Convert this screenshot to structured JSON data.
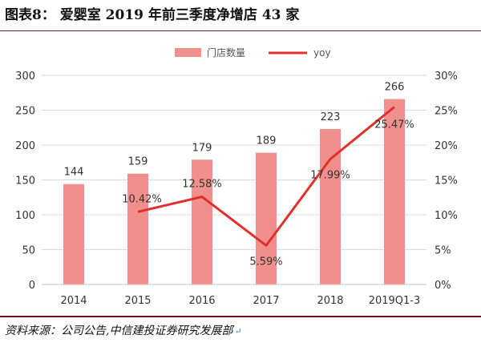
{
  "header": {
    "title": "图表8：  爱婴室 2019 年前三季度净增店 43 家"
  },
  "footer": {
    "source": "资料来源：公司公告,中信建投证券研究发展部"
  },
  "colors": {
    "bar": "#F08F8C",
    "line": "#E0302B",
    "axis": "#d9d9d9",
    "rule": "#7a0f12"
  },
  "chart_data": {
    "type": "bar",
    "categories": [
      "2014",
      "2015",
      "2016",
      "2017",
      "2018",
      "2019Q1-3"
    ],
    "series": [
      {
        "name": "门店数量",
        "type": "bar",
        "axis": "left",
        "values": [
          144,
          159,
          179,
          189,
          223,
          266
        ],
        "labels": [
          "144",
          "159",
          "179",
          "189",
          "223",
          "266"
        ]
      },
      {
        "name": "yoy",
        "type": "line",
        "axis": "right",
        "values": [
          null,
          10.42,
          12.58,
          5.59,
          17.99,
          25.47
        ],
        "labels": [
          "",
          "10.42%",
          "12.58%",
          "5.59%",
          "17.99%",
          "25.47%"
        ]
      }
    ],
    "y_left": {
      "min": 0,
      "max": 300,
      "ticks": [
        "0",
        "50",
        "100",
        "150",
        "200",
        "250",
        "300"
      ]
    },
    "y_right": {
      "min": 0,
      "max": 30,
      "ticks": [
        "0%",
        "5%",
        "10%",
        "15%",
        "20%",
        "25%",
        "30%"
      ]
    },
    "legend": [
      "门店数量",
      "yoy"
    ],
    "legend_position": "top-center",
    "title": "",
    "xlabel": "",
    "ylabel": ""
  }
}
